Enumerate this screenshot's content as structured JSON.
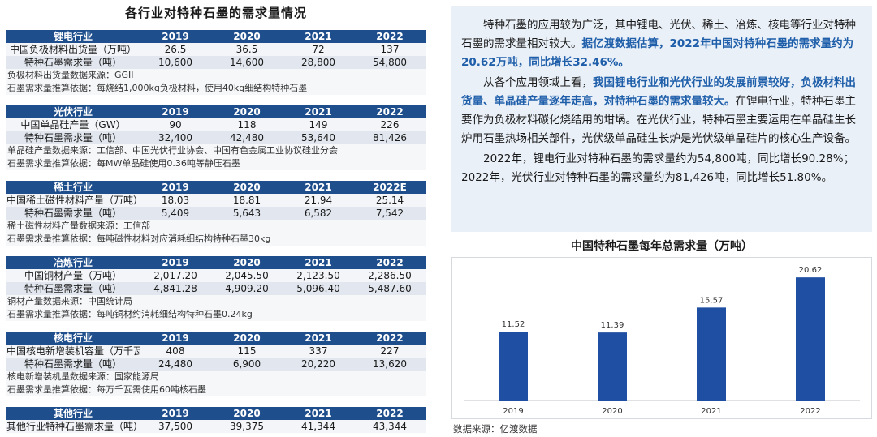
{
  "left": {
    "title": "各行业对特种石墨的需求量情况",
    "sections": [
      {
        "header": [
          "锂电行业",
          "2019",
          "2020",
          "2021",
          "2022"
        ],
        "rows": [
          [
            "中国负极材料出货量（万吨）",
            "26.5",
            "36.5",
            "72",
            "137"
          ],
          [
            "特种石墨需求量（吨）",
            "10,600",
            "14,600",
            "28,800",
            "54,800"
          ]
        ],
        "notes": [
          "负极材料出货量数据来源：GGII",
          "石墨需求量推算依据：每烧结1,000kg负极材料，使用40kg细结构特种石墨"
        ]
      },
      {
        "header": [
          "光伏行业",
          "2019",
          "2020",
          "2021",
          "2022"
        ],
        "rows": [
          [
            "中国单晶硅产量（GW）",
            "90",
            "118",
            "149",
            "226"
          ],
          [
            "特种石墨需求量（吨）",
            "32,400",
            "42,480",
            "53,640",
            "81,426"
          ]
        ],
        "notes": [
          "单晶硅产量数据来源：工信部、中国光伏行业协会、中国有色金属工业协议硅业分会",
          "石墨需求量推算依据：每MW单晶硅使用0.36吨等静压石墨"
        ]
      },
      {
        "header": [
          "稀土行业",
          "2019",
          "2020",
          "2021",
          "2022E"
        ],
        "rows": [
          [
            "中国稀土磁性材料产量（万吨）",
            "18.03",
            "18.81",
            "21.94",
            "25.14"
          ],
          [
            "特种石墨需求量（吨）",
            "5,409",
            "5,643",
            "6,582",
            "7,542"
          ]
        ],
        "notes": [
          "稀土磁性材料产量数据来源：工信部",
          "石墨需求量推算依据：每吨磁性材料对应消耗细结构特种石墨30kg"
        ]
      },
      {
        "header": [
          "冶炼行业",
          "2019",
          "2020",
          "2021",
          "2022"
        ],
        "rows": [
          [
            "中国铜材产量（万吨）",
            "2,017.20",
            "2,045.50",
            "2,123.50",
            "2,286.50"
          ],
          [
            "特种石墨需求量（吨）",
            "4,841.28",
            "4,909.20",
            "5,096.40",
            "5,487.60"
          ]
        ],
        "notes": [
          "铜材产量数据来源：中国统计局",
          "石墨需求量推算依据：每吨铜材约消耗细结构特种石墨0.24kg"
        ]
      },
      {
        "header": [
          "核电行业",
          "2019",
          "2020",
          "2021",
          "2022"
        ],
        "rows": [
          [
            "中国核电新增装机容量（万千瓦）",
            "408",
            "115",
            "337",
            "227"
          ],
          [
            "特种石墨需求量（吨）",
            "24,480",
            "6,900",
            "20,220",
            "13,620"
          ]
        ],
        "notes": [
          "核电新增装机量数据来源：国家能源局",
          "石墨需求量推算依据：每万千瓦需使用60吨核石墨"
        ]
      },
      {
        "header": [
          "其他行业",
          "2019",
          "2020",
          "2021",
          "2022"
        ],
        "rows": [
          [
            "其他行业特种石墨需求量（吨）",
            "37,500",
            "39,375",
            "41,344",
            "43,344"
          ]
        ],
        "notes": []
      }
    ]
  },
  "text_panel": {
    "p1_a": "特种石墨的应用较为广泛，其中锂电、光伏、稀土、冶炼、核电等行业对特种石墨的需求量相对较大。",
    "p1_b": "据亿渡数据估算，2022年中国对特种石墨的需求量约为20.62万吨，同比增长32.46%。",
    "p2_a": "从各个应用领域上看，",
    "p2_b": "我国锂电行业和光伏行业的发展前景较好，负极材料出货量、单晶硅产量逐年走高，对特种石墨的需求量较大。",
    "p2_c": "在锂电行业，特种石墨主要作为负极材料碳化烧结用的坩埚。在光伏行业，特种石墨主要运用在单晶硅生长炉用石墨热场相关部件，光伏级单晶硅生长炉是光伏级单晶硅片的核心生产设备。",
    "p3": "2022年，锂电行业对特种石墨的需求量约为54,800吨，同比增长90.28%；2022年，光伏行业对特种石墨的需求量约为81,426吨，同比增长51.80%。"
  },
  "chart_data": {
    "type": "bar",
    "title": "中国特种石墨每年总需求量（万吨）",
    "categories": [
      "2019",
      "2020",
      "2021",
      "2022"
    ],
    "values": [
      11.52,
      11.39,
      15.57,
      20.62
    ],
    "value_labels": [
      "11.52",
      "11.39",
      "15.57",
      "20.62"
    ],
    "ylim": [
      0,
      22
    ],
    "bar_color": "#1f4fa3",
    "grid": false,
    "legend": "none"
  },
  "source": "数据来源：亿渡数据",
  "colors": {
    "header_bg": "#1f4e8c",
    "highlight_text": "#1f5faa",
    "panel_bg": "#eaf0f8"
  }
}
